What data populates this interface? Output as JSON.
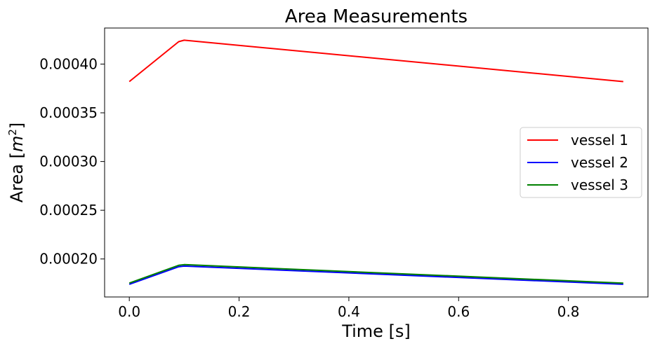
{
  "chart_data": {
    "type": "line",
    "title": "Area Measurements",
    "xlabel": "Time [s]",
    "ylabel": "Area [m²]",
    "ylabel_base": "Area [",
    "ylabel_var": "m",
    "ylabel_exp": "2",
    "ylabel_close": "]",
    "xlim": [
      -0.045,
      0.945
    ],
    "ylim": [
      0.000161,
      0.000437
    ],
    "xticks": [
      0.0,
      0.2,
      0.4,
      0.6,
      0.8
    ],
    "xtick_labels": [
      "0.0",
      "0.2",
      "0.4",
      "0.6",
      "0.8"
    ],
    "yticks": [
      0.0002,
      0.00025,
      0.0003,
      0.00035,
      0.0004
    ],
    "ytick_labels": [
      "0.00020",
      "0.00025",
      "0.00030",
      "0.00035",
      "0.00040"
    ],
    "grid": false,
    "legend_position": "center-right",
    "series": [
      {
        "name": "vessel 1",
        "color": "#ff0000",
        "x": [
          0.0,
          0.09,
          0.1,
          0.9
        ],
        "y": [
          0.000382,
          0.000423,
          0.0004245,
          0.000382
        ]
      },
      {
        "name": "vessel 2",
        "color": "#0000ff",
        "x": [
          0.0,
          0.09,
          0.1,
          0.9
        ],
        "y": [
          0.000174,
          0.000192,
          0.0001927,
          0.000174
        ]
      },
      {
        "name": "vessel 3",
        "color": "#008000",
        "x": [
          0.0,
          0.09,
          0.1,
          0.9
        ],
        "y": [
          0.0001752,
          0.0001935,
          0.0001942,
          0.0001752
        ]
      }
    ]
  }
}
